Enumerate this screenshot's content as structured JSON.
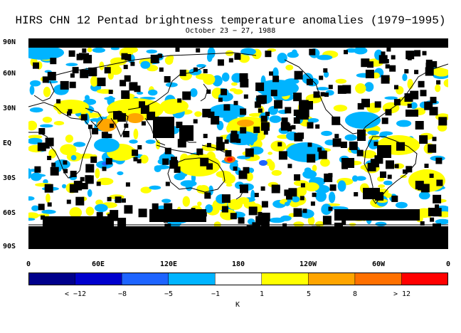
{
  "title": "HIRS CHN 12 Pentad brightness temperature anomalies (1979−1995)",
  "subtitle": "October 23 − 27, 1988",
  "lat_labels": [
    "90N",
    "60N",
    "30N",
    "EQ",
    "30S",
    "60S",
    "90S"
  ],
  "lon_labels": [
    "0",
    "60E",
    "120E",
    "180",
    "120W",
    "60W",
    "0"
  ],
  "colorbar": {
    "colors": [
      "#00008b",
      "#0000cd",
      "#1e64ff",
      "#00b4ff",
      "#ffffff",
      "#ffff00",
      "#ffa500",
      "#ff7000",
      "#ff0000"
    ],
    "labels": [
      "< −12",
      "−8",
      "−5",
      "−1",
      "1",
      "5",
      "8",
      "> 12"
    ],
    "unit": "K"
  }
}
